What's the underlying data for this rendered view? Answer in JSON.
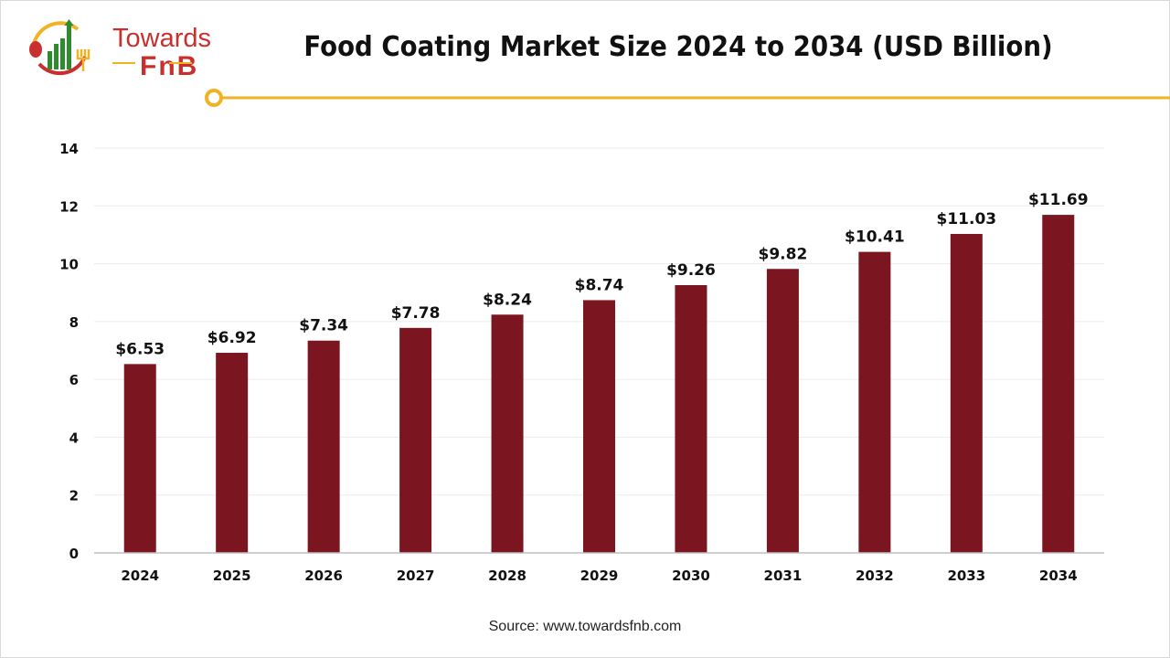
{
  "brand": {
    "name_line1": "Towards",
    "name_line2": "FnB",
    "colors": {
      "red": "#c8302e",
      "green": "#2e8b2e",
      "yellow": "#f0b323"
    }
  },
  "source": "Source: www.towardsfnb.com",
  "chart_data": {
    "type": "bar",
    "title": "Food Coating Market Size 2024 to 2034 (USD Billion)",
    "categories": [
      "2024",
      "2025",
      "2026",
      "2027",
      "2028",
      "2029",
      "2030",
      "2031",
      "2032",
      "2033",
      "2034"
    ],
    "values": [
      6.53,
      6.92,
      7.34,
      7.78,
      8.24,
      8.74,
      9.26,
      9.82,
      10.41,
      11.03,
      11.69
    ],
    "data_labels": [
      "$6.53",
      "$6.92",
      "$7.34",
      "$7.78",
      "$8.24",
      "$8.74",
      "$9.26",
      "$9.82",
      "$10.41",
      "$11.03",
      "$11.69"
    ],
    "xlabel": "",
    "ylabel": "",
    "ylim": [
      0,
      14
    ],
    "yticks": [
      0,
      2,
      4,
      6,
      8,
      10,
      12,
      14
    ],
    "grid": true,
    "bar_color": "#7b1520",
    "accent_line_color": "#f0b323"
  }
}
